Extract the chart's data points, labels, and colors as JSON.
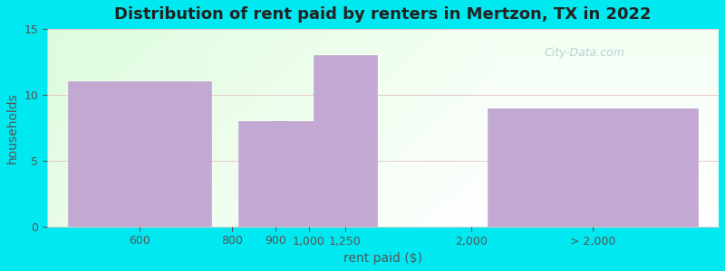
{
  "title": "Distribution of rent paid by renters in Mertzon, TX in 2022",
  "xlabel": "rent paid ($)",
  "ylabel": "households",
  "bar_centers": [
    1.1,
    2.55,
    2.95,
    3.55,
    6.5
  ],
  "bar_widths": [
    1.7,
    0.55,
    0.55,
    0.75,
    2.5
  ],
  "bar_heights": [
    11,
    8,
    8,
    13,
    9
  ],
  "bar_color": "#c4a8d4",
  "background_outer": "#00e8f0",
  "yticks": [
    0,
    5,
    10,
    15
  ],
  "ylim": [
    0,
    15
  ],
  "xlim": [
    0,
    8.0
  ],
  "xtick_positions": [
    1.1,
    2.2,
    2.72,
    3.12,
    3.55,
    5.05,
    6.5
  ],
  "xtick_labels": [
    "600",
    "800",
    "900",
    "1,000",
    "1,250",
    "2,000",
    "> 2,000"
  ],
  "title_fontsize": 13,
  "axis_label_fontsize": 10,
  "tick_fontsize": 9,
  "watermark": "City-Data.com"
}
